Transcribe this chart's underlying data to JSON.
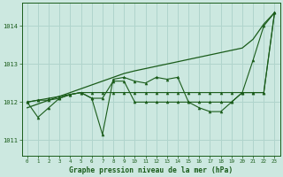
{
  "background_color": "#cce8e0",
  "grid_color": "#b0d4cc",
  "line_color": "#1a5c1a",
  "text_color": "#1a5c1a",
  "xlabel": "Graphe pression niveau de la mer (hPa)",
  "ylim": [
    1010.6,
    1014.6
  ],
  "xlim": [
    -0.5,
    23.5
  ],
  "yticks": [
    1011,
    1012,
    1013,
    1014
  ],
  "xticks": [
    0,
    1,
    2,
    3,
    4,
    5,
    6,
    7,
    8,
    9,
    10,
    11,
    12,
    13,
    14,
    15,
    16,
    17,
    18,
    19,
    20,
    21,
    22,
    23
  ],
  "series": {
    "trend": [
      1011.85,
      1011.95,
      1012.05,
      1012.15,
      1012.25,
      1012.35,
      1012.45,
      1012.55,
      1012.65,
      1012.75,
      1012.82,
      1012.88,
      1012.94,
      1013.0,
      1013.06,
      1013.12,
      1013.18,
      1013.24,
      1013.3,
      1013.36,
      1013.42,
      1013.65,
      1014.05,
      1014.35
    ],
    "line1": [
      1012.0,
      1011.6,
      1011.85,
      1012.1,
      1012.2,
      1012.25,
      1012.1,
      1011.15,
      1012.6,
      1012.65,
      1012.55,
      1012.5,
      1012.65,
      1012.6,
      1012.65,
      1012.0,
      1011.85,
      1011.75,
      1011.75,
      1012.0,
      1012.25,
      1013.1,
      1014.0,
      1014.35
    ],
    "line2": [
      1012.0,
      1012.05,
      1012.05,
      1012.1,
      1012.2,
      1012.25,
      1012.25,
      1012.25,
      1012.25,
      1012.25,
      1012.25,
      1012.25,
      1012.25,
      1012.25,
      1012.25,
      1012.25,
      1012.25,
      1012.25,
      1012.25,
      1012.25,
      1012.25,
      1012.25,
      1012.25,
      1014.35
    ],
    "line3": [
      1012.0,
      1012.05,
      1012.1,
      1012.15,
      1012.2,
      1012.25,
      1012.1,
      1012.1,
      1012.55,
      1012.55,
      1012.0,
      1012.0,
      1012.0,
      1012.0,
      1012.0,
      1012.0,
      1012.0,
      1012.0,
      1012.0,
      1012.0,
      1012.25,
      1012.25,
      1012.25,
      1014.35
    ]
  }
}
